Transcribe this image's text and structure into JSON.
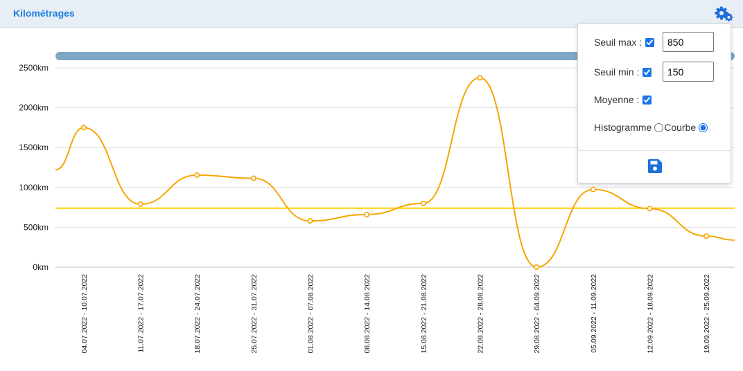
{
  "header": {
    "title": "Kilométrages"
  },
  "settings": {
    "seuil_max_label": "Seuil max :",
    "seuil_max_checked": true,
    "seuil_max_value": "850",
    "seuil_min_label": "Seuil min :",
    "seuil_min_checked": true,
    "seuil_min_value": "150",
    "moyenne_label": "Moyenne :",
    "moyenne_checked": true,
    "histogramme_label": "Histogramme",
    "courbe_label": "Courbe",
    "selected_mode": "courbe",
    "icons": {
      "settings": "gears-icon",
      "save": "floppy-disk-icon"
    }
  },
  "chart_data": {
    "type": "line",
    "categories": [
      "04.07.2022 - 10.07.2022",
      "11.07.2022 - 17.07.2022",
      "18.07.2022 - 24.07.2022",
      "25.07.2022 - 31.07.2022",
      "01.08.2022 - 07.08.2022",
      "08.08.2022 - 14.08.2022",
      "15.08.2022 - 21.08.2022",
      "22.08.2022 - 28.08.2022",
      "29.08.2022 - 04.09.2022",
      "05.09.2022 - 11.09.2022",
      "12.09.2022 - 18.09.2022",
      "19.09.2022 - 25.09.2022"
    ],
    "series": [
      {
        "values": [
          1750,
          790,
          1155,
          1115,
          580,
          660,
          800,
          2375,
          0,
          975,
          735,
          390
        ]
      }
    ],
    "left_edge_value": 1220,
    "right_edge_value": 340,
    "average": 740,
    "yticks": [
      "0km",
      "500km",
      "1000km",
      "1500km",
      "2000km",
      "2500km"
    ],
    "ytick_values": [
      0,
      500,
      1000,
      1500,
      2000,
      2500
    ],
    "ylim": [
      0,
      2500
    ],
    "grid": true,
    "colors": {
      "line": "#f5a500",
      "average": "#ffd000",
      "scrollbar": "#7ea7c6",
      "grid": "#e0e0e0"
    }
  }
}
